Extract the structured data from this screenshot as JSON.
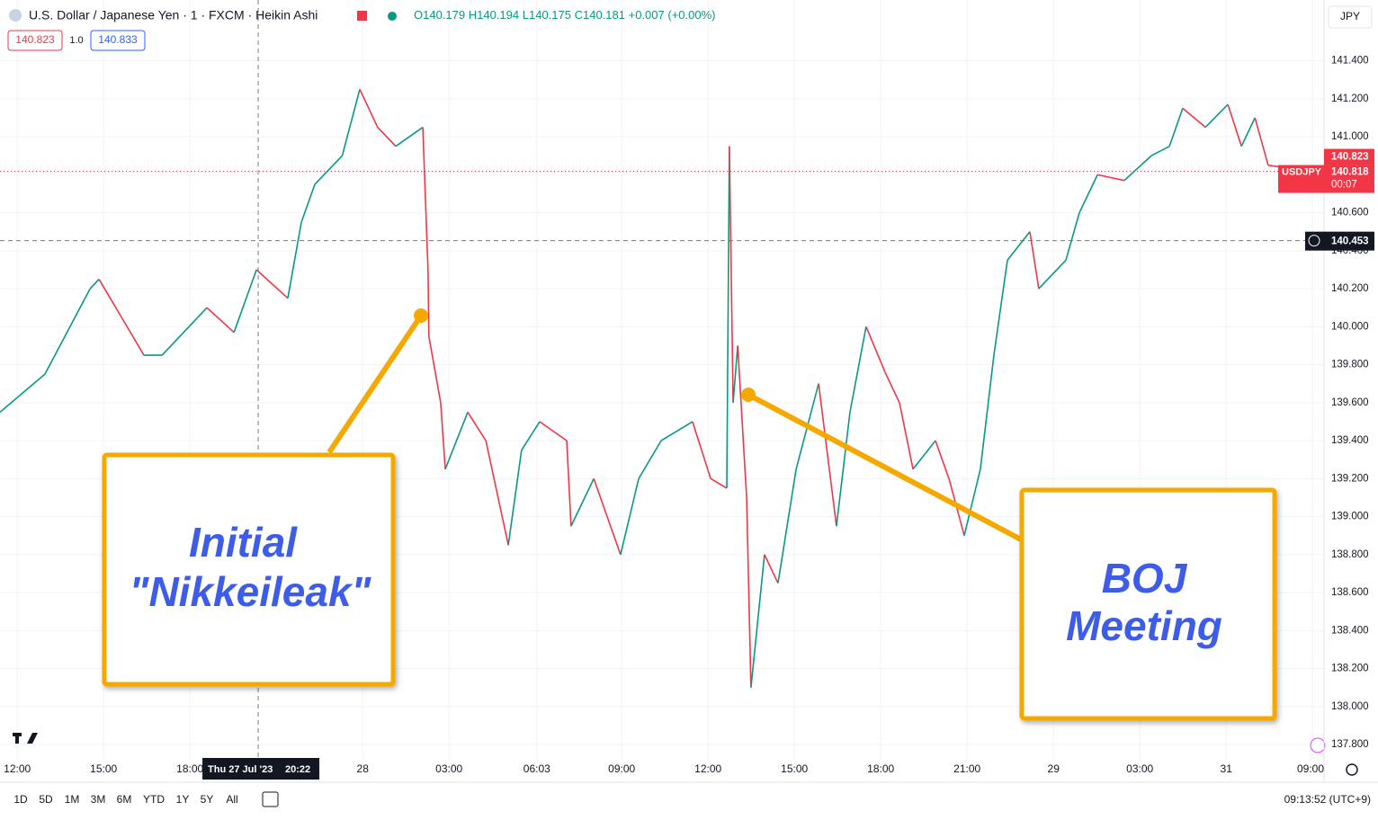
{
  "header": {
    "title": "U.S. Dollar / Japanese Yen · 1 · FXCM · Heikin Ashi",
    "ohlc": [
      "O140.179",
      "H140.194",
      "L140.175",
      "C140.181",
      "+0.007 (+0.00%)"
    ],
    "sell": "140.823",
    "spread": "1.0",
    "buy": "140.833",
    "currency": "JPY"
  },
  "chart_data": {
    "type": "line",
    "x": [
      -0.6,
      0.96,
      2.53,
      2.84,
      4.4,
      5.03,
      6.59,
      7.53,
      8.31,
      9.4,
      9.87,
      10.34,
      11.29,
      11.9,
      12.52,
      13.15,
      14.09,
      14.27,
      14.3,
      14.71,
      14.87,
      15.65,
      16.28,
      17.06,
      17.52,
      18.15,
      19.09,
      19.24,
      20.03,
      20.96,
      21.59,
      22.37,
      23.46,
      24.09,
      24.65,
      24.74,
      24.87,
      25.03,
      25.34,
      25.49,
      25.96,
      26.43,
      27.06,
      27.84,
      28.46,
      28.93,
      29.49,
      30.18,
      30.65,
      31.12,
      31.9,
      32.37,
      32.9,
      33.46,
      33.93,
      34.4,
      35.18,
      35.49,
      36.43,
      36.9,
      37.53,
      38.46,
      39.4,
      40.03,
      40.49,
      41.28,
      42.06,
      42.53,
      43.0,
      43.46,
      44.4,
      45.18
    ],
    "series": [
      {
        "name": "USDJPY",
        "up_color": "#089981",
        "down_color": "#f23645",
        "values": [
          139.55,
          139.75,
          140.2,
          140.25,
          139.85,
          139.85,
          140.1,
          139.97,
          140.3,
          140.15,
          140.55,
          140.75,
          140.9,
          141.25,
          141.05,
          140.95,
          141.05,
          140.3,
          139.95,
          139.6,
          139.25,
          139.55,
          139.4,
          138.85,
          139.35,
          139.5,
          139.4,
          138.95,
          139.2,
          138.8,
          139.2,
          139.4,
          139.5,
          139.2,
          139.15,
          140.95,
          139.6,
          139.9,
          139.1,
          138.1,
          138.8,
          138.65,
          139.25,
          139.7,
          138.95,
          139.55,
          140.0,
          139.75,
          139.6,
          139.25,
          139.4,
          139.2,
          138.9,
          139.25,
          139.85,
          140.35,
          140.5,
          140.2,
          140.35,
          140.6,
          140.8,
          140.77,
          140.9,
          140.95,
          141.15,
          141.05,
          141.17,
          140.95,
          141.1,
          140.85,
          140.83,
          140.73
        ]
      }
    ],
    "xlim": [
      -0.6,
      45.4
    ],
    "ylim": [
      137.72,
      141.72
    ],
    "xticks": [
      {
        "value": 0,
        "label": "12:00"
      },
      {
        "value": 3,
        "label": "15:00"
      },
      {
        "value": 6,
        "label": "18:00"
      },
      {
        "value": 12,
        "label": "28"
      },
      {
        "value": 15,
        "label": "03:00"
      },
      {
        "value": 18.05,
        "label": "06:03"
      },
      {
        "value": 21,
        "label": "09:00"
      },
      {
        "value": 24,
        "label": "12:00"
      },
      {
        "value": 27,
        "label": "15:00"
      },
      {
        "value": 30,
        "label": "18:00"
      },
      {
        "value": 33,
        "label": "21:00"
      },
      {
        "value": 36,
        "label": "29"
      },
      {
        "value": 39,
        "label": "03:00"
      },
      {
        "value": 42,
        "label": "31"
      },
      {
        "value": 45,
        "label": "09:00"
      }
    ],
    "yticks": [
      {
        "value": 137.8,
        "label": "137.800"
      },
      {
        "value": 138.0,
        "label": "138.000"
      },
      {
        "value": 138.2,
        "label": "138.200"
      },
      {
        "value": 138.4,
        "label": "138.400"
      },
      {
        "value": 138.6,
        "label": "138.600"
      },
      {
        "value": 138.8,
        "label": "138.800"
      },
      {
        "value": 139.0,
        "label": "139.000"
      },
      {
        "value": 139.2,
        "label": "139.200"
      },
      {
        "value": 139.4,
        "label": "139.400"
      },
      {
        "value": 139.6,
        "label": "139.600"
      },
      {
        "value": 139.8,
        "label": "139.800"
      },
      {
        "value": 140.0,
        "label": "140.000"
      },
      {
        "value": 140.2,
        "label": "140.200"
      },
      {
        "value": 140.4,
        "label": "140.400"
      },
      {
        "value": 140.6,
        "label": "140.600"
      },
      {
        "value": 140.8,
        "label": "140.800"
      },
      {
        "value": 141.0,
        "label": "141.000"
      },
      {
        "value": 141.2,
        "label": "141.200"
      },
      {
        "value": 141.4,
        "label": "141.400"
      }
    ],
    "grid": true,
    "last_price": {
      "value": 140.818,
      "label": "140.818",
      "ask": "140.823",
      "symbol": "USDJPY",
      "countdown": "00:07"
    },
    "crosshair": {
      "x": 8.37,
      "y": {
        "value": 140.453,
        "label": "140.453"
      },
      "date_label": "Thu 27 Jul '23",
      "time_label": "20:22"
    },
    "annotations": [
      {
        "lines": [
          "Initial",
          "\"Nikkeileak\""
        ]
      },
      {
        "lines": [
          "BOJ",
          "Meeting"
        ]
      }
    ]
  },
  "toolbar": {
    "ranges": [
      "1D",
      "5D",
      "1M",
      "3M",
      "6M",
      "YTD",
      "1Y",
      "5Y",
      "All"
    ],
    "clock": "09:13:52 (UTC+9)"
  }
}
